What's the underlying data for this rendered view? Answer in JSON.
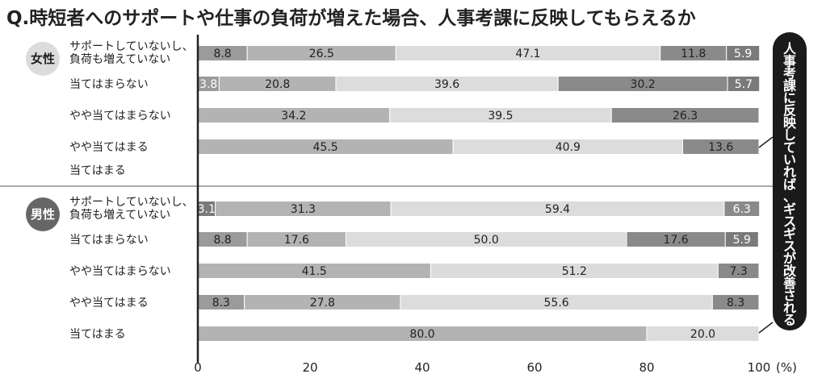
{
  "chart_data": {
    "type": "bar",
    "orientation": "horizontal",
    "stacked": true,
    "percent": true,
    "title": "Q.時短者へのサポートや仕事の負荷が増えた場合、人事考課に反映してもらえるか",
    "side_note": "人事考課に反映していれば、ギスギスが改善される",
    "unit": "(%)",
    "xlim": [
      0,
      100
    ],
    "ticks": [
      0,
      20,
      40,
      60,
      80,
      100
    ],
    "segment_colors": [
      "#9b9b9b",
      "#b3b3b3",
      "#dcdcdc",
      "#8a8a8a",
      "#7a7a7a"
    ],
    "groups": [
      {
        "name": "女性",
        "rows": [
          {
            "label": [
              "サポートしていないし、",
              "負荷も増えていない"
            ],
            "values": [
              8.8,
              26.5,
              47.1,
              11.8,
              5.9
            ]
          },
          {
            "label": [
              "当てはまらない"
            ],
            "values": [
              3.8,
              20.8,
              39.6,
              30.2,
              5.7
            ]
          },
          {
            "label": [
              "やや当てはまらない"
            ],
            "values": [
              34.2,
              39.5,
              26.3
            ]
          },
          {
            "label": [
              "やや当てはまる"
            ],
            "values": [
              45.5,
              40.9,
              13.6
            ]
          },
          {
            "label": [
              "当てはまる"
            ],
            "values": []
          }
        ]
      },
      {
        "name": "男性",
        "rows": [
          {
            "label": [
              "サポートしていないし、",
              "負荷も増えていない"
            ],
            "values": [
              3.1,
              31.3,
              59.4,
              6.3
            ]
          },
          {
            "label": [
              "当てはまらない"
            ],
            "values": [
              8.8,
              17.6,
              50.0,
              17.6,
              5.9
            ]
          },
          {
            "label": [
              "やや当てはまらない"
            ],
            "values": [
              41.5,
              51.2,
              7.3
            ]
          },
          {
            "label": [
              "やや当てはまる"
            ],
            "values": [
              8.3,
              27.8,
              55.6,
              8.3
            ]
          },
          {
            "label": [
              "当てはまる"
            ],
            "values": [
              80.0,
              20.0
            ]
          }
        ]
      }
    ]
  }
}
